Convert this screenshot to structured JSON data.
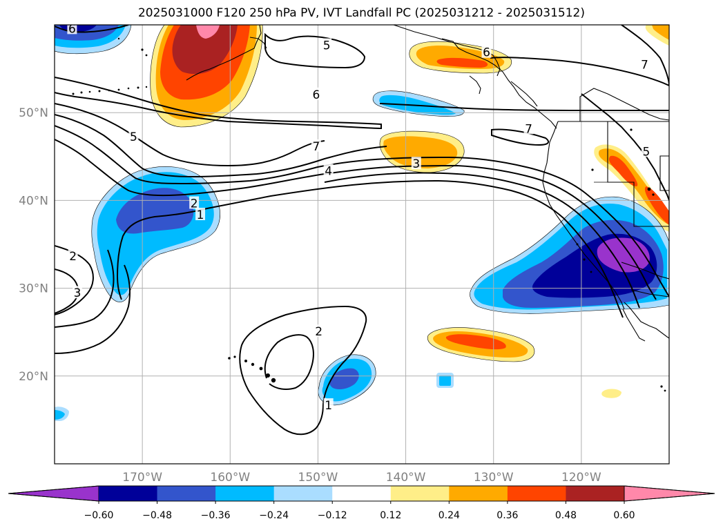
{
  "title": "2025031000 F120 250 hPa PV, IVT Landfall PC (2025031212 - 2025031512)",
  "map": {
    "lon_range": [
      -180,
      -110
    ],
    "lat_range": [
      10,
      60
    ],
    "lon_ticks": [
      {
        "value": -170,
        "label": "170°W"
      },
      {
        "value": -160,
        "label": "160°W"
      },
      {
        "value": -150,
        "label": "150°W"
      },
      {
        "value": -140,
        "label": "140°W"
      },
      {
        "value": -130,
        "label": "130°W"
      },
      {
        "value": -120,
        "label": "120°W"
      }
    ],
    "lat_ticks": [
      {
        "value": 20,
        "label": "20°N"
      },
      {
        "value": 30,
        "label": "30°N"
      },
      {
        "value": 40,
        "label": "40°N"
      },
      {
        "value": 50,
        "label": "50°N"
      }
    ],
    "contour_labels": [
      {
        "text": "6",
        "lon": -178.0,
        "lat": 59.5
      },
      {
        "text": "5",
        "lon": -149.0,
        "lat": 57.6
      },
      {
        "text": "6",
        "lon": -130.8,
        "lat": 56.8
      },
      {
        "text": "7",
        "lon": -112.8,
        "lat": 55.4
      },
      {
        "text": "6",
        "lon": -150.2,
        "lat": 52.0
      },
      {
        "text": "5",
        "lon": -171.0,
        "lat": 47.2
      },
      {
        "text": "7",
        "lon": -150.2,
        "lat": 46.1
      },
      {
        "text": "7",
        "lon": -126.0,
        "lat": 48.1
      },
      {
        "text": "5",
        "lon": -112.6,
        "lat": 45.5
      },
      {
        "text": "4",
        "lon": -148.8,
        "lat": 43.3
      },
      {
        "text": "3",
        "lon": -138.8,
        "lat": 44.1
      },
      {
        "text": "2",
        "lon": -164.1,
        "lat": 39.6
      },
      {
        "text": "1",
        "lon": -163.4,
        "lat": 38.3
      },
      {
        "text": "2",
        "lon": -177.9,
        "lat": 33.6
      },
      {
        "text": "3",
        "lon": -177.4,
        "lat": 29.4
      },
      {
        "text": "2",
        "lon": -149.9,
        "lat": 25.0
      },
      {
        "text": "1",
        "lon": -148.8,
        "lat": 16.6
      }
    ]
  },
  "colorbar": {
    "colors": [
      "#9933cc",
      "#000099",
      "#3355cc",
      "#00bbff",
      "#aaddff",
      "#ffffff",
      "#ffee88",
      "#ffaa00",
      "#ff4400",
      "#aa2222",
      "#ff88aa"
    ],
    "boundaries": [
      -0.6,
      -0.48,
      -0.36,
      -0.24,
      -0.12,
      0.12,
      0.24,
      0.36,
      0.48,
      0.6
    ],
    "labels": [
      "−0.60",
      "−0.48",
      "−0.36",
      "−0.24",
      "−0.12",
      "0.12",
      "0.24",
      "0.36",
      "0.48",
      "0.60"
    ]
  }
}
